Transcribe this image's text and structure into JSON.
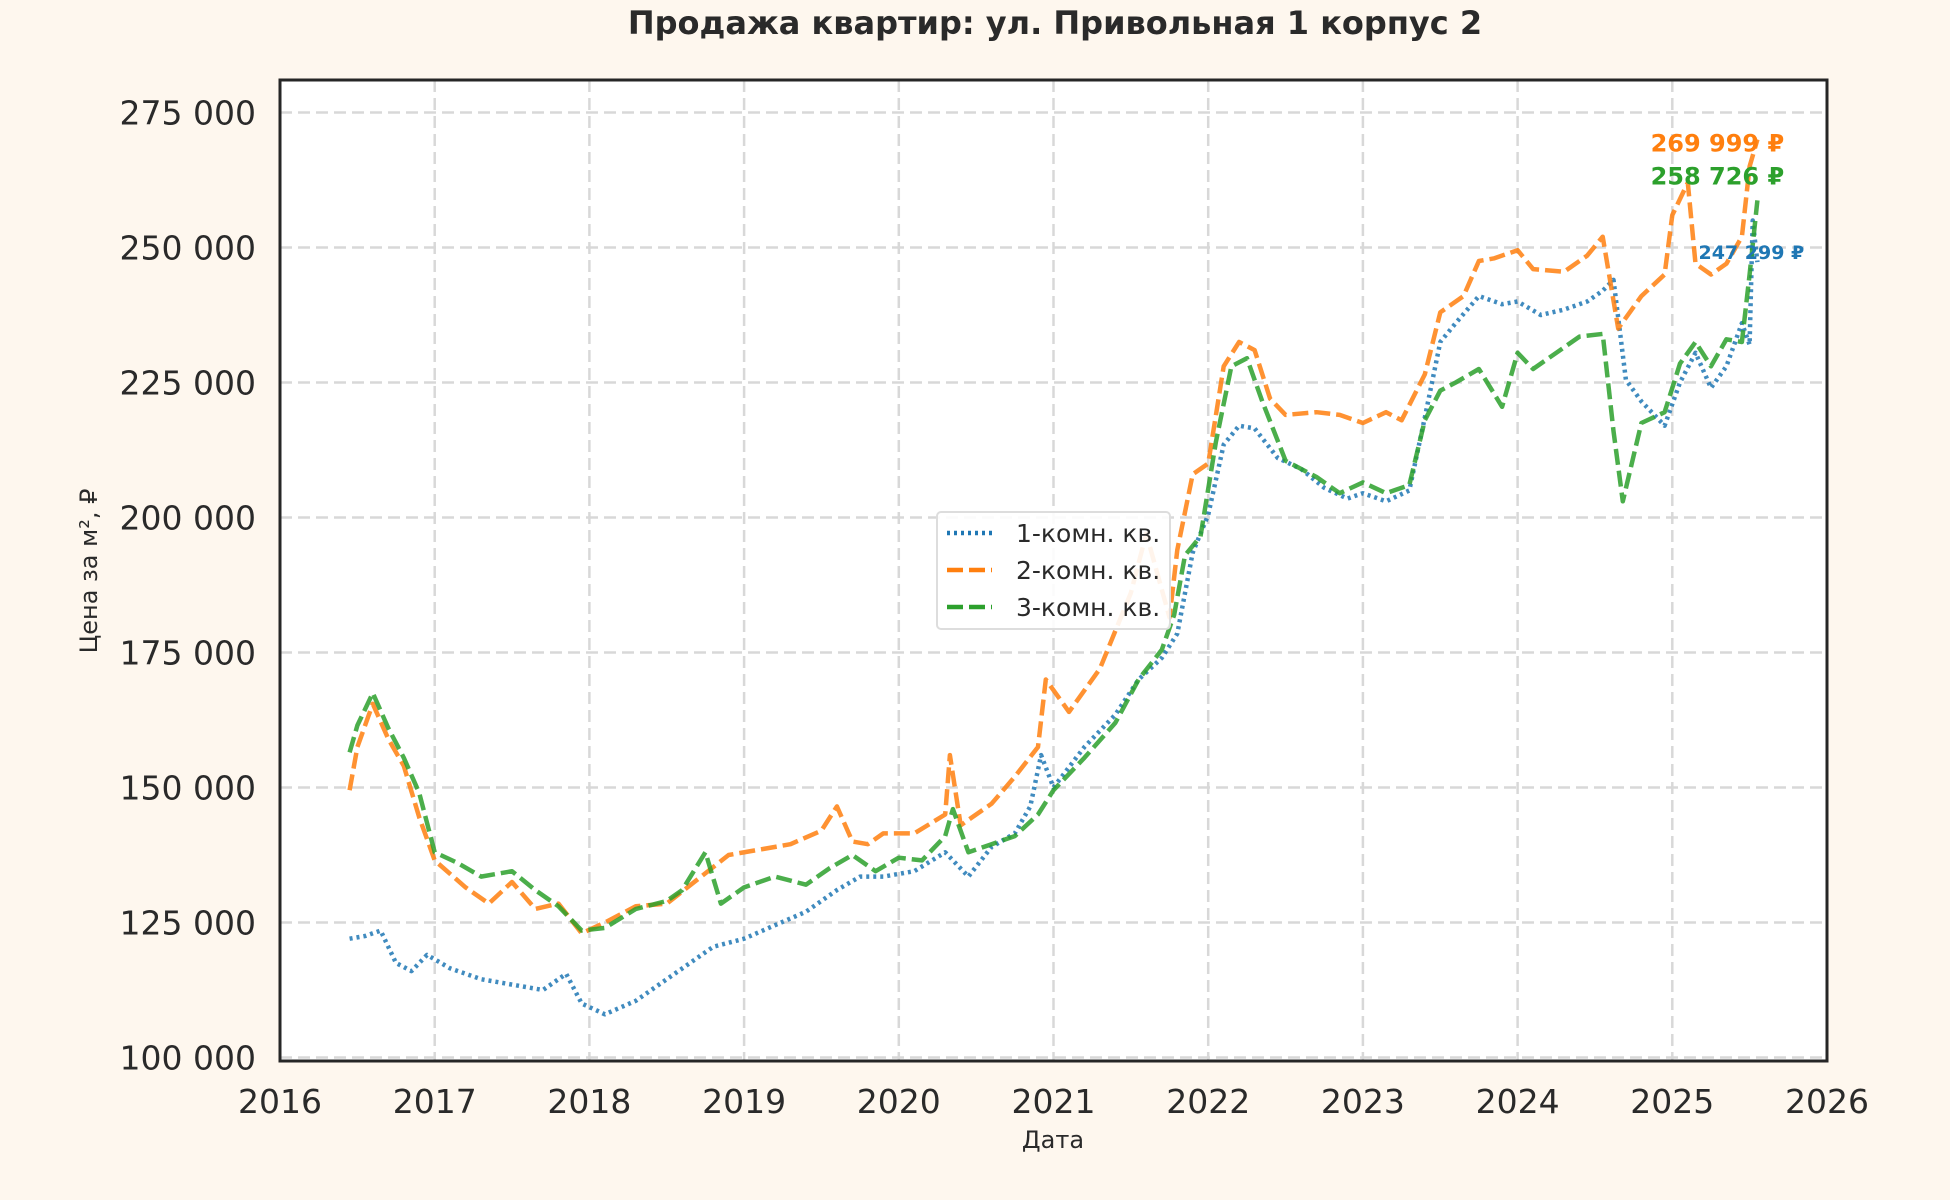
{
  "chart_data": {
    "type": "line",
    "title": "Продажа квартир: ул. Привольная 1 корпус 2",
    "xlabel": "Дата",
    "ylabel": "Цена за м², ₽",
    "xlim": [
      2016,
      2026
    ],
    "ylim": [
      100000,
      280000
    ],
    "xticks": [
      2016,
      2017,
      2018,
      2019,
      2020,
      2021,
      2022,
      2023,
      2024,
      2025,
      2026
    ],
    "xtick_labels": [
      "2016",
      "2017",
      "2018",
      "2019",
      "2020",
      "2021",
      "2022",
      "2023",
      "2024",
      "2025",
      "2026"
    ],
    "yticks": [
      100000,
      125000,
      150000,
      175000,
      200000,
      225000,
      250000,
      275000
    ],
    "ytick_labels": [
      "100 000",
      "125 000",
      "150 000",
      "175 000",
      "200 000",
      "225 000",
      "250 000",
      "275 000"
    ],
    "grid": true,
    "legend_position": "center",
    "series": [
      {
        "name": "1-комн. кв.",
        "color": "#1f77b4",
        "style": "dotted",
        "end_label": "247 299 ₽",
        "x": [
          2016.45,
          2016.55,
          2016.65,
          2016.75,
          2016.85,
          2016.95,
          2017.1,
          2017.3,
          2017.5,
          2017.7,
          2017.85,
          2017.95,
          2018.1,
          2018.3,
          2018.5,
          2018.65,
          2018.8,
          2019.0,
          2019.2,
          2019.4,
          2019.6,
          2019.75,
          2019.9,
          2020.1,
          2020.3,
          2020.45,
          2020.6,
          2020.75,
          2020.85,
          2020.92,
          2021.0,
          2021.2,
          2021.4,
          2021.55,
          2021.7,
          2021.8,
          2021.9,
          2022.0,
          2022.1,
          2022.2,
          2022.3,
          2022.45,
          2022.6,
          2022.75,
          2022.9,
          2023.0,
          2023.15,
          2023.3,
          2023.4,
          2023.5,
          2023.6,
          2023.75,
          2023.9,
          2024.0,
          2024.15,
          2024.3,
          2024.45,
          2024.55,
          2024.62,
          2024.7,
          2024.8,
          2024.95,
          2025.05,
          2025.15,
          2025.25,
          2025.35,
          2025.45,
          2025.5,
          2025.52,
          2025.55
        ],
        "values": [
          122000,
          122500,
          123500,
          117500,
          116000,
          119000,
          116500,
          114500,
          113500,
          112500,
          115500,
          110000,
          108000,
          110500,
          114500,
          117500,
          120500,
          122000,
          124500,
          127000,
          131000,
          133500,
          133500,
          134500,
          138000,
          133500,
          139000,
          141500,
          146500,
          156000,
          150000,
          157500,
          163500,
          170000,
          174000,
          178500,
          193500,
          200500,
          213500,
          217000,
          216500,
          211000,
          209000,
          205500,
          203500,
          204500,
          203000,
          205000,
          218500,
          232500,
          236000,
          241000,
          239500,
          240000,
          237500,
          238500,
          240000,
          242000,
          244000,
          225500,
          221500,
          217000,
          225000,
          230500,
          224000,
          228000,
          236000,
          232000,
          255000,
          247299
        ]
      },
      {
        "name": "2-комн. кв.",
        "color": "#ff7f0e",
        "style": "dashed",
        "end_label": "269 999 ₽",
        "x": [
          2016.45,
          2016.5,
          2016.6,
          2016.7,
          2016.8,
          2016.9,
          2017.0,
          2017.2,
          2017.35,
          2017.5,
          2017.65,
          2017.8,
          2017.95,
          2018.1,
          2018.3,
          2018.5,
          2018.7,
          2018.9,
          2019.1,
          2019.3,
          2019.5,
          2019.6,
          2019.7,
          2019.8,
          2019.9,
          2020.1,
          2020.3,
          2020.33,
          2020.4,
          2020.6,
          2020.75,
          2020.9,
          2020.95,
          2021.1,
          2021.3,
          2021.5,
          2021.6,
          2021.75,
          2021.8,
          2021.9,
          2022.0,
          2022.1,
          2022.2,
          2022.3,
          2022.4,
          2022.5,
          2022.7,
          2022.85,
          2023.0,
          2023.15,
          2023.25,
          2023.4,
          2023.5,
          2023.65,
          2023.75,
          2023.85,
          2024.0,
          2024.1,
          2024.3,
          2024.45,
          2024.55,
          2024.65,
          2024.8,
          2024.95,
          2025.0,
          2025.1,
          2025.15,
          2025.25,
          2025.35,
          2025.45,
          2025.5,
          2025.55
        ],
        "values": [
          149500,
          157500,
          165500,
          159000,
          154000,
          144500,
          136500,
          131500,
          128500,
          132500,
          127500,
          128500,
          123000,
          125000,
          128000,
          128500,
          133000,
          137500,
          138500,
          139500,
          142000,
          146500,
          140000,
          139500,
          141500,
          141500,
          145000,
          156000,
          143000,
          147000,
          152000,
          157500,
          170000,
          164000,
          172000,
          186000,
          197000,
          181500,
          194000,
          208000,
          210000,
          228000,
          232500,
          231000,
          222000,
          219000,
          219500,
          219000,
          217500,
          219500,
          218000,
          226500,
          238000,
          241000,
          247500,
          248000,
          249500,
          246000,
          245500,
          248500,
          252000,
          235000,
          241000,
          245000,
          256000,
          262000,
          247000,
          245000,
          247000,
          252000,
          265000,
          269999
        ]
      },
      {
        "name": "3-комн. кв.",
        "color": "#2ca02c",
        "style": "dashed",
        "end_label": "258 726 ₽",
        "x": [
          2016.45,
          2016.5,
          2016.6,
          2016.7,
          2016.8,
          2016.9,
          2017.0,
          2017.15,
          2017.3,
          2017.5,
          2017.65,
          2017.8,
          2017.95,
          2018.1,
          2018.3,
          2018.5,
          2018.6,
          2018.75,
          2018.85,
          2019.0,
          2019.2,
          2019.4,
          2019.55,
          2019.7,
          2019.85,
          2020.0,
          2020.15,
          2020.3,
          2020.35,
          2020.45,
          2020.6,
          2020.75,
          2020.9,
          2021.0,
          2021.2,
          2021.4,
          2021.55,
          2021.7,
          2021.78,
          2021.85,
          2021.95,
          2022.05,
          2022.15,
          2022.25,
          2022.35,
          2022.5,
          2022.7,
          2022.85,
          2023.0,
          2023.15,
          2023.3,
          2023.4,
          2023.5,
          2023.6,
          2023.75,
          2023.9,
          2024.0,
          2024.1,
          2024.25,
          2024.4,
          2024.55,
          2024.62,
          2024.68,
          2024.8,
          2024.95,
          2025.05,
          2025.15,
          2025.25,
          2025.35,
          2025.45,
          2025.5,
          2025.55
        ],
        "values": [
          156500,
          161500,
          167500,
          161000,
          155500,
          149000,
          138000,
          136000,
          133500,
          134500,
          131000,
          128000,
          123500,
          124000,
          127500,
          129000,
          131000,
          138000,
          128500,
          131500,
          133500,
          132000,
          135000,
          137500,
          134500,
          137000,
          136500,
          141000,
          146000,
          138000,
          139500,
          141000,
          145000,
          149500,
          155500,
          162000,
          170000,
          175500,
          182000,
          193000,
          196500,
          214000,
          228000,
          229500,
          221500,
          210500,
          207500,
          204500,
          206500,
          204500,
          206000,
          218000,
          223500,
          225000,
          227500,
          220500,
          230500,
          227500,
          230500,
          233500,
          234000,
          216000,
          203000,
          217500,
          219500,
          228500,
          232500,
          228000,
          233000,
          232500,
          245000,
          258726
        ]
      }
    ]
  }
}
